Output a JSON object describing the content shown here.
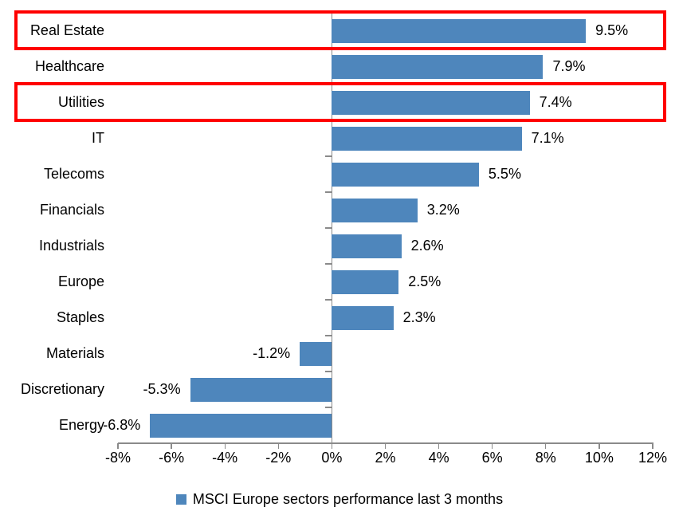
{
  "chart_data": {
    "type": "bar",
    "orientation": "horizontal",
    "title": "",
    "legend": "MSCI Europe sectors performance last 3 months",
    "legend_position": "bottom-center",
    "categories": [
      "Real Estate",
      "Healthcare",
      "Utilities",
      "IT",
      "Telecoms",
      "Financials",
      "Industrials",
      "Europe",
      "Staples",
      "Materials",
      "Discretionary",
      "Energy"
    ],
    "values": [
      9.5,
      7.9,
      7.4,
      7.1,
      5.5,
      3.2,
      2.6,
      2.5,
      2.3,
      -1.2,
      -5.3,
      -6.8
    ],
    "value_labels": [
      "9.5%",
      "7.9%",
      "7.4%",
      "7.1%",
      "5.5%",
      "3.2%",
      "2.6%",
      "2.5%",
      "2.3%",
      "-1.2%",
      "-5.3%",
      "-6.8%"
    ],
    "xlim": [
      -8,
      12
    ],
    "x_tick_values": [
      -8,
      -6,
      -4,
      -2,
      0,
      2,
      4,
      6,
      8,
      10,
      12
    ],
    "x_tick_labels": [
      "-8%",
      "-6%",
      "-4%",
      "-2%",
      "0%",
      "2%",
      "4%",
      "6%",
      "8%",
      "10%",
      "12%"
    ],
    "grid": false,
    "bar_color": "#4e86bc",
    "axis_color": "#8a8a8a",
    "text_color": "#000000",
    "highlight_color": "#ff0000",
    "highlighted_categories": [
      "Real Estate",
      "Utilities"
    ]
  }
}
